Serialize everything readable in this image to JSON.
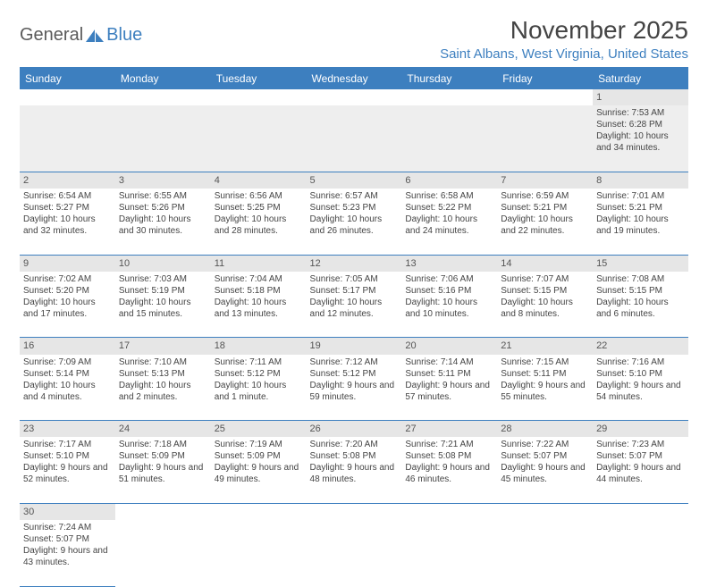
{
  "logo": {
    "text1": "General",
    "text2": "Blue"
  },
  "title": "November 2025",
  "location": "Saint Albans, West Virginia, United States",
  "colors": {
    "header_bg": "#3d7fbf",
    "header_text": "#ffffff",
    "daynum_bg": "#e6e6e6",
    "text": "#444444",
    "accent": "#3d7fbf"
  },
  "weekdays": [
    "Sunday",
    "Monday",
    "Tuesday",
    "Wednesday",
    "Thursday",
    "Friday",
    "Saturday"
  ],
  "weeks": [
    [
      null,
      null,
      null,
      null,
      null,
      null,
      {
        "n": "1",
        "sr": "7:53 AM",
        "ss": "6:28 PM",
        "dl": "10 hours and 34 minutes."
      }
    ],
    [
      {
        "n": "2",
        "sr": "6:54 AM",
        "ss": "5:27 PM",
        "dl": "10 hours and 32 minutes."
      },
      {
        "n": "3",
        "sr": "6:55 AM",
        "ss": "5:26 PM",
        "dl": "10 hours and 30 minutes."
      },
      {
        "n": "4",
        "sr": "6:56 AM",
        "ss": "5:25 PM",
        "dl": "10 hours and 28 minutes."
      },
      {
        "n": "5",
        "sr": "6:57 AM",
        "ss": "5:23 PM",
        "dl": "10 hours and 26 minutes."
      },
      {
        "n": "6",
        "sr": "6:58 AM",
        "ss": "5:22 PM",
        "dl": "10 hours and 24 minutes."
      },
      {
        "n": "7",
        "sr": "6:59 AM",
        "ss": "5:21 PM",
        "dl": "10 hours and 22 minutes."
      },
      {
        "n": "8",
        "sr": "7:01 AM",
        "ss": "5:21 PM",
        "dl": "10 hours and 19 minutes."
      }
    ],
    [
      {
        "n": "9",
        "sr": "7:02 AM",
        "ss": "5:20 PM",
        "dl": "10 hours and 17 minutes."
      },
      {
        "n": "10",
        "sr": "7:03 AM",
        "ss": "5:19 PM",
        "dl": "10 hours and 15 minutes."
      },
      {
        "n": "11",
        "sr": "7:04 AM",
        "ss": "5:18 PM",
        "dl": "10 hours and 13 minutes."
      },
      {
        "n": "12",
        "sr": "7:05 AM",
        "ss": "5:17 PM",
        "dl": "10 hours and 12 minutes."
      },
      {
        "n": "13",
        "sr": "7:06 AM",
        "ss": "5:16 PM",
        "dl": "10 hours and 10 minutes."
      },
      {
        "n": "14",
        "sr": "7:07 AM",
        "ss": "5:15 PM",
        "dl": "10 hours and 8 minutes."
      },
      {
        "n": "15",
        "sr": "7:08 AM",
        "ss": "5:15 PM",
        "dl": "10 hours and 6 minutes."
      }
    ],
    [
      {
        "n": "16",
        "sr": "7:09 AM",
        "ss": "5:14 PM",
        "dl": "10 hours and 4 minutes."
      },
      {
        "n": "17",
        "sr": "7:10 AM",
        "ss": "5:13 PM",
        "dl": "10 hours and 2 minutes."
      },
      {
        "n": "18",
        "sr": "7:11 AM",
        "ss": "5:12 PM",
        "dl": "10 hours and 1 minute."
      },
      {
        "n": "19",
        "sr": "7:12 AM",
        "ss": "5:12 PM",
        "dl": "9 hours and 59 minutes."
      },
      {
        "n": "20",
        "sr": "7:14 AM",
        "ss": "5:11 PM",
        "dl": "9 hours and 57 minutes."
      },
      {
        "n": "21",
        "sr": "7:15 AM",
        "ss": "5:11 PM",
        "dl": "9 hours and 55 minutes."
      },
      {
        "n": "22",
        "sr": "7:16 AM",
        "ss": "5:10 PM",
        "dl": "9 hours and 54 minutes."
      }
    ],
    [
      {
        "n": "23",
        "sr": "7:17 AM",
        "ss": "5:10 PM",
        "dl": "9 hours and 52 minutes."
      },
      {
        "n": "24",
        "sr": "7:18 AM",
        "ss": "5:09 PM",
        "dl": "9 hours and 51 minutes."
      },
      {
        "n": "25",
        "sr": "7:19 AM",
        "ss": "5:09 PM",
        "dl": "9 hours and 49 minutes."
      },
      {
        "n": "26",
        "sr": "7:20 AM",
        "ss": "5:08 PM",
        "dl": "9 hours and 48 minutes."
      },
      {
        "n": "27",
        "sr": "7:21 AM",
        "ss": "5:08 PM",
        "dl": "9 hours and 46 minutes."
      },
      {
        "n": "28",
        "sr": "7:22 AM",
        "ss": "5:07 PM",
        "dl": "9 hours and 45 minutes."
      },
      {
        "n": "29",
        "sr": "7:23 AM",
        "ss": "5:07 PM",
        "dl": "9 hours and 44 minutes."
      }
    ],
    [
      {
        "n": "30",
        "sr": "7:24 AM",
        "ss": "5:07 PM",
        "dl": "9 hours and 43 minutes."
      },
      null,
      null,
      null,
      null,
      null,
      null
    ]
  ],
  "labels": {
    "sunrise": "Sunrise:",
    "sunset": "Sunset:",
    "daylight": "Daylight:"
  }
}
